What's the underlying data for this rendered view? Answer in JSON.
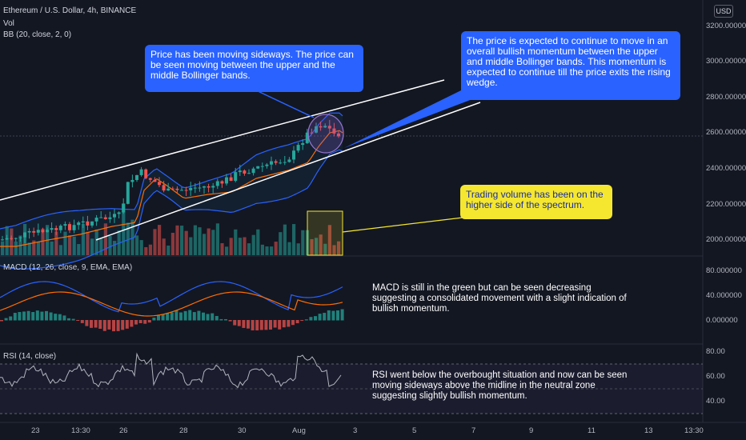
{
  "header": {
    "symbol_title": "Ethereum / U.S. Dollar, 4h, BINANCE",
    "vol_label": "Vol",
    "bb_label": "BB (20, close, 2, 0)",
    "currency_badge": "USD"
  },
  "panes": {
    "macd_label": "MACD (12, 26, close, 9, EMA, EMA)",
    "rsi_label": "RSI (14, close)"
  },
  "price_axis": [
    "3200.000000",
    "3000.000000",
    "2800.000000",
    "2600.000000",
    "2400.000000",
    "2200.000000",
    "2000.000000"
  ],
  "macd_axis": [
    "80.000000",
    "40.000000",
    "0.000000"
  ],
  "rsi_axis": [
    "80.00",
    "60.00",
    "40.00"
  ],
  "time_axis": [
    "23",
    "13:30",
    "26",
    "28",
    "30",
    "Aug",
    "3",
    "5",
    "7",
    "9",
    "11",
    "13",
    "13:30"
  ],
  "annotations": {
    "sideways": "Price has been moving sideways. The price can be seen moving between the upper and the middle Bollinger bands.",
    "momentum": "The price is expected to continue to move in an overall bullish momentum between the upper and middle Bollinger bands. This momentum is expected to continue till the price exits the rising wedge.",
    "volume": "Trading volume has been on the higher side of the spectrum.",
    "macd": "MACD is still in the green but can be seen decreasing suggesting a consolidated movement with a slight indication of bullish momentum.",
    "rsi": "RSI went below the overbought situation and now can be seen moving sideways above the midline in the neutral zone suggesting slightly bullish momentum."
  },
  "colors": {
    "background": "#131722",
    "up": "#26a69a",
    "down": "#ef5350",
    "bb_band": "#2962ff",
    "bb_basis": "#ff6d00",
    "macd_line": "#2962ff",
    "signal_line": "#ff6d00",
    "rsi_line": "#b2b5be",
    "highlight_circle": "#7e57c2",
    "volume_box": "#f5e72f"
  }
}
